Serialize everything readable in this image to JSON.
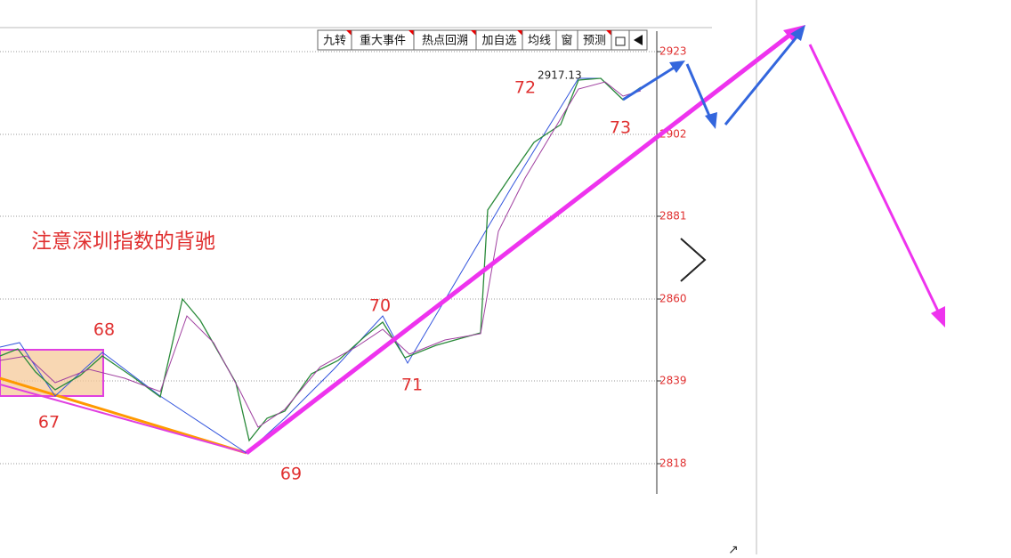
{
  "toolbar": {
    "buttons": [
      "九转",
      "重大事件",
      "热点回溯",
      "加自选",
      "均线",
      "窗",
      "预测"
    ]
  },
  "price_axis": {
    "labels": [
      "2923",
      "2902",
      "2881",
      "2860",
      "2839",
      "2818"
    ]
  },
  "last_price": "2917.13",
  "wave_labels": [
    "67",
    "68",
    "69",
    "70",
    "71",
    "72",
    "73"
  ],
  "annotation": "注意深圳指数的背驰"
}
